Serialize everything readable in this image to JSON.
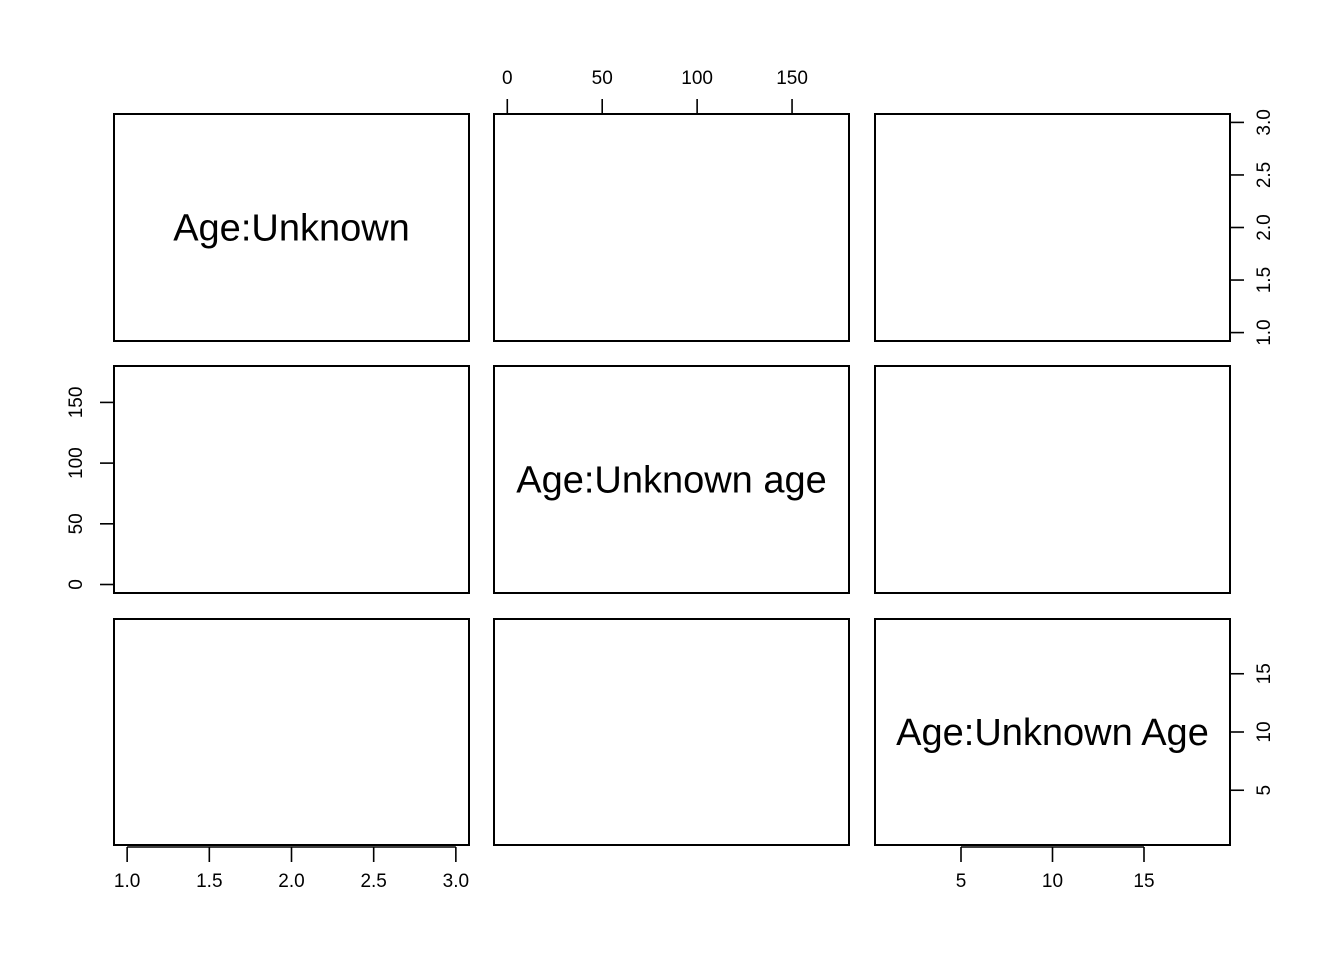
{
  "chart_data": {
    "type": "scatter",
    "layout": "pairs-matrix",
    "grid": false,
    "variables": [
      {
        "name": "Age:Unknown",
        "range": [
          0.92,
          3.08
        ],
        "ticks": [
          1.0,
          1.5,
          2.0,
          2.5,
          3.0
        ],
        "tick_labels": [
          "1.0",
          "1.5",
          "2.0",
          "2.5",
          "3.0"
        ]
      },
      {
        "name": "Age:Unknown age",
        "range": [
          -7,
          180
        ],
        "ticks": [
          0,
          50,
          100,
          150
        ],
        "tick_labels": [
          "0",
          "50",
          "100",
          "150"
        ]
      },
      {
        "name": "Age:Unknown Age",
        "range": [
          0.3,
          19.7
        ],
        "ticks": [
          5,
          10,
          15
        ],
        "tick_labels": [
          "5",
          "10",
          "15"
        ]
      }
    ],
    "points": []
  }
}
